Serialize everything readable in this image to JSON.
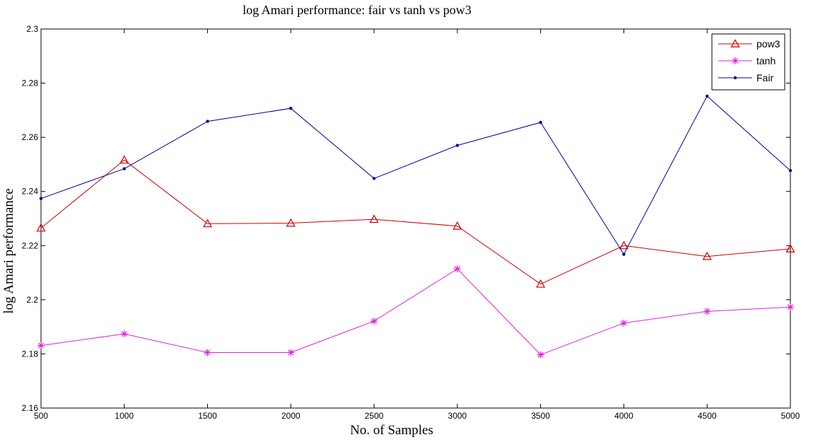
{
  "chart_data": {
    "type": "line",
    "title": "log Amari performance: fair vs tanh vs pow3",
    "xlabel": "No. of Samples",
    "ylabel": "log Amari performance",
    "x": [
      500,
      1000,
      1500,
      2000,
      2500,
      3000,
      3500,
      4000,
      4500,
      5000
    ],
    "xlim": [
      500,
      5000
    ],
    "ylim": [
      2.16,
      2.3
    ],
    "x_ticks": [
      "500",
      "1000",
      "1500",
      "2000",
      "2500",
      "3000",
      "3500",
      "4000",
      "4500",
      "5000"
    ],
    "y_ticks": [
      "2.16",
      "2.18",
      "2.2",
      "2.22",
      "2.24",
      "2.26",
      "2.28",
      "2.3"
    ],
    "grid": false,
    "legend_position": "top-right",
    "series": [
      {
        "name": "pow3",
        "color": "#cc0000",
        "marker": "triangle",
        "values": [
          2.2265,
          2.2516,
          2.2281,
          2.2283,
          2.2297,
          2.2272,
          2.2058,
          2.22,
          2.216,
          2.2188
        ]
      },
      {
        "name": "tanh",
        "color": "#dd22dd",
        "marker": "asterisk",
        "values": [
          2.1831,
          2.1874,
          2.1805,
          2.1805,
          2.1921,
          2.2114,
          2.1797,
          2.1914,
          2.1957,
          2.1973
        ]
      },
      {
        "name": "Fair",
        "color": "#000099",
        "marker": "dot",
        "values": [
          2.2374,
          2.2484,
          2.2659,
          2.2707,
          2.2448,
          2.257,
          2.2655,
          2.2168,
          2.2752,
          2.2477
        ]
      }
    ]
  }
}
